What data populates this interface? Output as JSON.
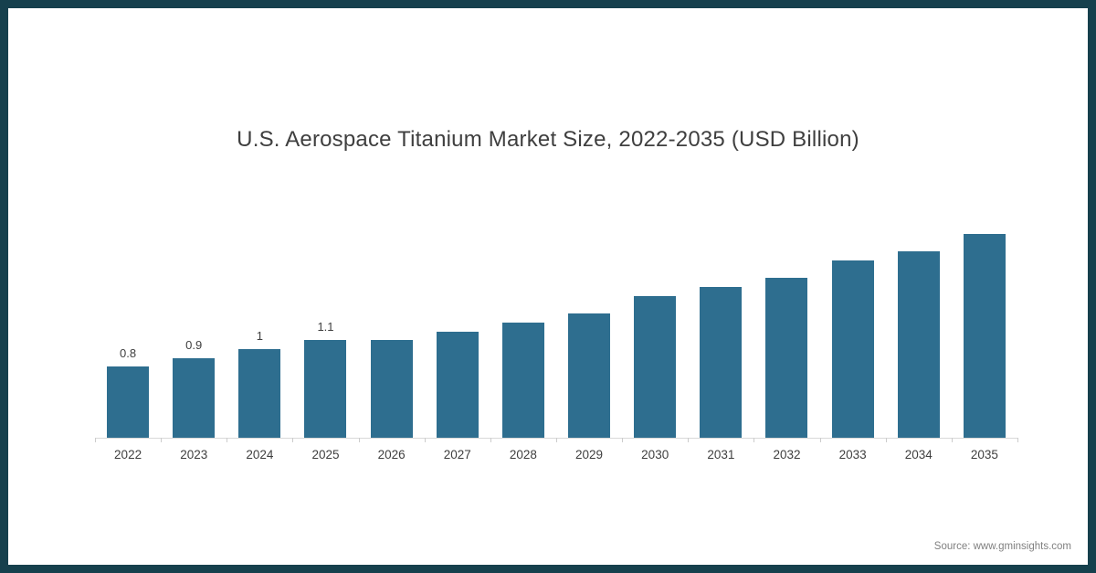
{
  "title": "U.S. Aerospace Titanium Market Size, 2022-2035 (USD Billion)",
  "source": "Source: www.gminsights.com",
  "colors": {
    "bar": "#2e6e8f",
    "frame_border": "#16404d",
    "axis_line": "#d9d9d9",
    "title_text": "#3f3f3f",
    "source_text": "#808080"
  },
  "chart_data": {
    "type": "bar",
    "title": "U.S. Aerospace Titanium Market Size, 2022-2035 (USD Billion)",
    "categories": [
      "2022",
      "2023",
      "2024",
      "2025",
      "2026",
      "2027",
      "2028",
      "2029",
      "2030",
      "2031",
      "2032",
      "2033",
      "2034",
      "2035"
    ],
    "values": [
      0.8,
      0.9,
      1,
      1.1,
      1.1,
      1.2,
      1.3,
      1.4,
      1.6,
      1.7,
      1.8,
      2.0,
      2.1,
      2.3
    ],
    "data_labels": [
      "0.8",
      "0.9",
      "1",
      "1.1",
      null,
      null,
      null,
      null,
      null,
      null,
      null,
      null,
      null,
      null
    ],
    "xlabel": "",
    "ylabel": "",
    "ylim": [
      0,
      2.5
    ],
    "grid": false,
    "legend": "none"
  }
}
